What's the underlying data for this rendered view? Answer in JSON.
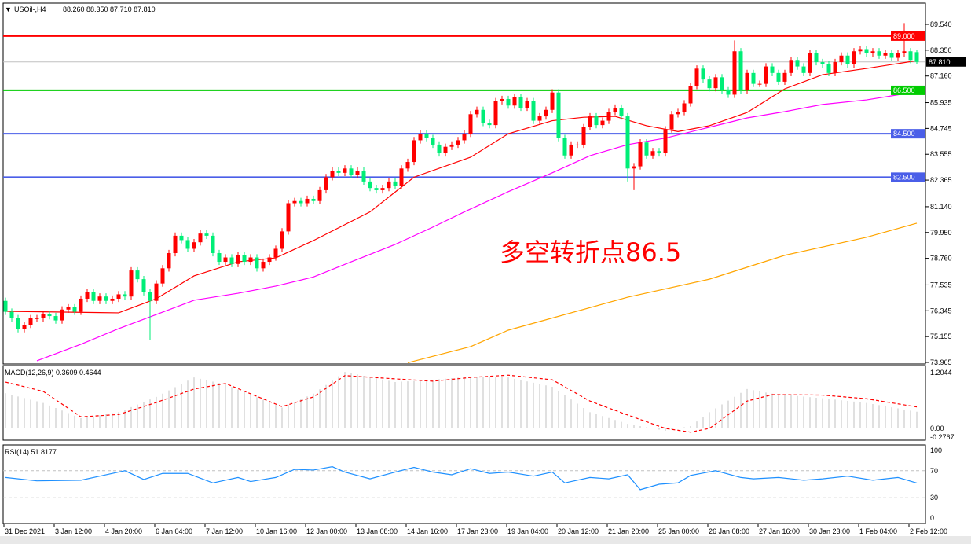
{
  "header": {
    "arrow_icon": "triangle-down-icon",
    "symbol": "USOil-,H4",
    "ohlc_text": "88.260 88.350 87.710 87.810"
  },
  "annotation": "多空转折点86.5",
  "colors": {
    "up": "#ff0000",
    "down": "#00ee77",
    "ma_fast": "#ff0000",
    "ma_mid": "#ff00ff",
    "ma_slow": "#ffa500",
    "macd_hist": "#c0c0c0",
    "macd_signal": "#ff0000",
    "rsi": "#1e90ff"
  },
  "chart_data": [
    {
      "type": "candlestick",
      "title": "USOil-,H4",
      "ylim": [
        73.965,
        89.54
      ],
      "y_ticks": [
        "89.540",
        "88.350",
        "87.160",
        "85.935",
        "84.745",
        "83.555",
        "82.365",
        "81.140",
        "79.950",
        "78.760",
        "77.535",
        "76.345",
        "75.155",
        "73.965"
      ],
      "x_ticks": [
        "31 Dec 2021",
        "3 Jan 12:00",
        "4 Jan 20:00",
        "6 Jan 04:00",
        "7 Jan 12:00",
        "10 Jan 16:00",
        "12 Jan 00:00",
        "13 Jan 08:00",
        "14 Jan 16:00",
        "17 Jan 23:00",
        "19 Jan 04:00",
        "20 Jan 12:00",
        "21 Jan 20:00",
        "25 Jan 00:00",
        "26 Jan 08:00",
        "27 Jan 16:00",
        "30 Jan 23:00",
        "1 Feb 04:00",
        "2 Feb 12:00"
      ],
      "levels": [
        {
          "value": 89.0,
          "label": "89.000",
          "color": "#ff0000"
        },
        {
          "value": 86.5,
          "label": "86.500",
          "color": "#00cc00"
        },
        {
          "value": 84.5,
          "label": "84.500",
          "color": "#4a5ee8"
        },
        {
          "value": 82.5,
          "label": "82.500",
          "color": "#4a5ee8"
        }
      ],
      "current_price": {
        "value": 87.81,
        "label": "87.810"
      },
      "closes": [
        76.3,
        76.0,
        75.5,
        75.7,
        76.0,
        76.0,
        76.2,
        76.1,
        75.9,
        76.4,
        76.5,
        76.3,
        76.9,
        77.2,
        76.8,
        77.0,
        76.8,
        76.9,
        77.1,
        77.0,
        78.2,
        77.8,
        77.2,
        76.8,
        77.6,
        78.3,
        79.0,
        79.8,
        79.6,
        79.2,
        79.5,
        79.9,
        79.8,
        79.0,
        78.6,
        78.8,
        78.5,
        78.9,
        78.6,
        78.8,
        78.3,
        78.6,
        78.8,
        79.2,
        80.0,
        81.3,
        81.4,
        81.3,
        81.5,
        81.4,
        81.9,
        82.5,
        82.8,
        82.7,
        82.9,
        82.6,
        82.8,
        82.3,
        82.0,
        81.9,
        82.0,
        82.3,
        82.1,
        82.9,
        83.2,
        84.2,
        84.5,
        84.3,
        84.0,
        83.6,
        83.9,
        84.0,
        84.2,
        84.5,
        85.4,
        85.6,
        85.0,
        84.9,
        86.0,
        86.1,
        85.8,
        86.2,
        85.7,
        86.0,
        85.1,
        85.3,
        85.6,
        86.4,
        84.3,
        83.5,
        84.0,
        84.0,
        84.8,
        85.3,
        84.9,
        85.1,
        85.5,
        85.7,
        85.3,
        82.9,
        83.0,
        84.1,
        83.5,
        83.7,
        83.6,
        84.7,
        85.4,
        85.5,
        85.9,
        86.7,
        87.5,
        87.0,
        86.6,
        87.1,
        86.5,
        86.3,
        88.3,
        86.5,
        87.3,
        86.8,
        86.8,
        87.6,
        87.3,
        86.9,
        87.3,
        87.9,
        87.6,
        87.3,
        88.2,
        87.8,
        87.7,
        87.3,
        87.8,
        88.1,
        87.7,
        88.3,
        88.4,
        88.2,
        88.3,
        88.1,
        88.2,
        88.0,
        88.2,
        88.3,
        87.9,
        87.81
      ],
      "first_open": 76.8,
      "last_bar": {
        "open": 88.26,
        "high": 88.35,
        "low": 87.71,
        "close": 87.81
      },
      "notable_extremes": [
        {
          "bar": 23,
          "low": 75.0
        },
        {
          "bar": 99,
          "low": 82.3
        },
        {
          "bar": 100,
          "low": 81.9
        },
        {
          "bar": 116,
          "high": 88.8
        },
        {
          "bar": 143,
          "high": 89.6
        }
      ],
      "moving_averages": [
        {
          "color_key": "ma_fast",
          "points": [
            [
              0,
              76.32
            ],
            [
              18,
              76.25
            ],
            [
              24,
              76.9
            ],
            [
              30,
              77.95
            ],
            [
              37,
              78.6
            ],
            [
              43,
              78.78
            ],
            [
              49,
              79.58
            ],
            [
              58,
              80.9
            ],
            [
              65,
              82.5
            ],
            [
              74,
              83.42
            ],
            [
              80,
              84.5
            ],
            [
              87,
              85.1
            ],
            [
              92,
              85.26
            ],
            [
              97,
              85.3
            ],
            [
              102,
              84.87
            ],
            [
              107,
              84.6
            ],
            [
              112,
              84.87
            ],
            [
              118,
              85.48
            ],
            [
              124,
              86.57
            ],
            [
              130,
              87.22
            ],
            [
              137,
              87.51
            ],
            [
              145,
              87.87
            ]
          ]
        },
        {
          "color_key": "ma_mid",
          "points": [
            [
              5,
              74.04
            ],
            [
              12,
              74.8
            ],
            [
              18,
              75.52
            ],
            [
              24,
              76.17
            ],
            [
              30,
              76.83
            ],
            [
              37,
              77.15
            ],
            [
              43,
              77.48
            ],
            [
              49,
              77.9
            ],
            [
              55,
              78.6
            ],
            [
              62,
              79.4
            ],
            [
              68,
              80.2
            ],
            [
              73,
              80.9
            ],
            [
              80,
              81.83
            ],
            [
              87,
              82.7
            ],
            [
              93,
              83.49
            ],
            [
              99,
              84.0
            ],
            [
              105,
              84.3
            ],
            [
              112,
              84.8
            ],
            [
              118,
              85.23
            ],
            [
              124,
              85.52
            ],
            [
              130,
              85.85
            ],
            [
              137,
              86.06
            ],
            [
              145,
              86.43
            ]
          ]
        },
        {
          "color_key": "ma_slow",
          "points": [
            [
              64,
              73.95
            ],
            [
              74,
              74.69
            ],
            [
              80,
              75.45
            ],
            [
              99,
              76.97
            ],
            [
              112,
              77.8
            ],
            [
              124,
              78.9
            ],
            [
              137,
              79.73
            ],
            [
              145,
              80.38
            ]
          ]
        }
      ]
    },
    {
      "type": "bar+line",
      "title": "MACD(12,26,9) 0.3609 0.4644",
      "ylim": [
        -0.2767,
        1.2044
      ],
      "y_ticks": [
        "1.2044",
        "0.00",
        "-0.2767"
      ],
      "signal": [
        [
          0,
          1.0
        ],
        [
          6,
          0.8
        ],
        [
          12,
          0.25
        ],
        [
          18,
          0.3
        ],
        [
          24,
          0.56
        ],
        [
          30,
          0.85
        ],
        [
          35,
          0.97
        ],
        [
          44,
          0.47
        ],
        [
          49,
          0.68
        ],
        [
          54,
          1.14
        ],
        [
          62,
          1.07
        ],
        [
          68,
          1.02
        ],
        [
          74,
          1.1
        ],
        [
          80,
          1.15
        ],
        [
          87,
          1.05
        ],
        [
          93,
          0.59
        ],
        [
          99,
          0.29
        ],
        [
          105,
          0.0
        ],
        [
          109,
          -0.08
        ],
        [
          112,
          0.0
        ],
        [
          118,
          0.59
        ],
        [
          122,
          0.73
        ],
        [
          130,
          0.72
        ],
        [
          137,
          0.64
        ],
        [
          145,
          0.4644
        ]
      ],
      "histogram": [
        [
          0,
          0.76
        ],
        [
          6,
          0.55
        ],
        [
          12,
          0.22
        ],
        [
          18,
          0.35
        ],
        [
          24,
          0.68
        ],
        [
          30,
          1.1
        ],
        [
          35,
          0.95
        ],
        [
          44,
          0.45
        ],
        [
          49,
          0.75
        ],
        [
          54,
          1.22
        ],
        [
          62,
          1.0
        ],
        [
          68,
          1.05
        ],
        [
          74,
          1.12
        ],
        [
          80,
          1.1
        ],
        [
          87,
          0.9
        ],
        [
          93,
          0.35
        ],
        [
          99,
          0.1
        ],
        [
          105,
          -0.05
        ],
        [
          109,
          0.05
        ],
        [
          112,
          0.35
        ],
        [
          118,
          0.85
        ],
        [
          122,
          0.75
        ],
        [
          130,
          0.65
        ],
        [
          137,
          0.55
        ],
        [
          145,
          0.3609
        ]
      ]
    },
    {
      "type": "line",
      "title": "RSI(14) 51.8177",
      "ylim": [
        0,
        100
      ],
      "y_ticks": [
        "100",
        "70",
        "30",
        "0"
      ],
      "levels": [
        70,
        30
      ],
      "values": [
        [
          0,
          60
        ],
        [
          5,
          55
        ],
        [
          12,
          56
        ],
        [
          15,
          62
        ],
        [
          19,
          70
        ],
        [
          22,
          57
        ],
        [
          25,
          66
        ],
        [
          29,
          66
        ],
        [
          33,
          52
        ],
        [
          37,
          60
        ],
        [
          39,
          54
        ],
        [
          43,
          60
        ],
        [
          46,
          72
        ],
        [
          49,
          71
        ],
        [
          52,
          76
        ],
        [
          54,
          68
        ],
        [
          58,
          58
        ],
        [
          62,
          68
        ],
        [
          65,
          75
        ],
        [
          68,
          68
        ],
        [
          71,
          64
        ],
        [
          74,
          73
        ],
        [
          77,
          66
        ],
        [
          80,
          68
        ],
        [
          84,
          62
        ],
        [
          87,
          68
        ],
        [
          89,
          52
        ],
        [
          93,
          60
        ],
        [
          96,
          58
        ],
        [
          99,
          64
        ],
        [
          101,
          42
        ],
        [
          104,
          50
        ],
        [
          107,
          52
        ],
        [
          109,
          63
        ],
        [
          113,
          70
        ],
        [
          117,
          60
        ],
        [
          119,
          58
        ],
        [
          123,
          60
        ],
        [
          127,
          56
        ],
        [
          130,
          58
        ],
        [
          134,
          62
        ],
        [
          138,
          56
        ],
        [
          142,
          60
        ],
        [
          145,
          51.8
        ]
      ]
    }
  ]
}
